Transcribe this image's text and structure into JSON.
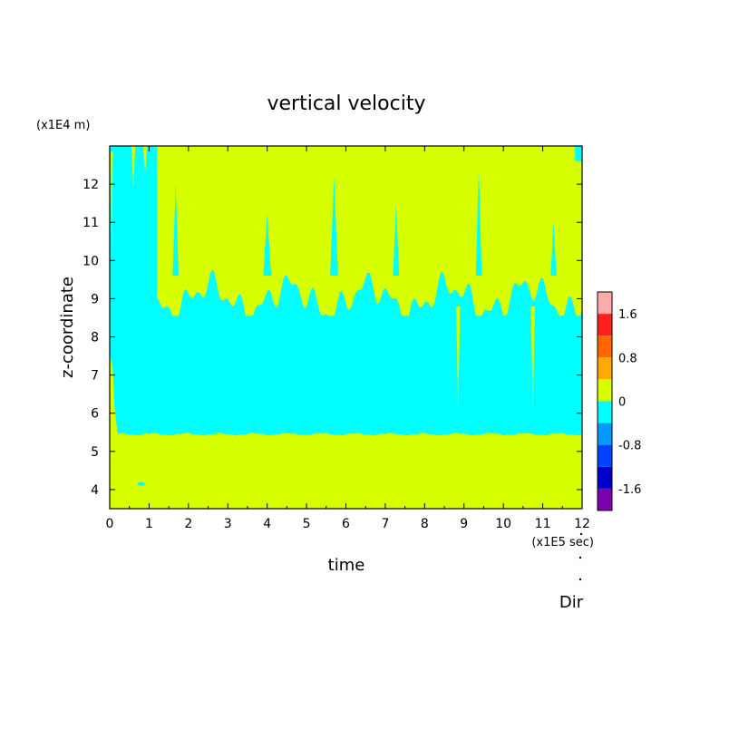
{
  "chart_data": {
    "type": "heatmap",
    "title": "vertical velocity",
    "xlabel": "time",
    "ylabel": "z-coordinate",
    "x_unit": "(x1E5 sec)",
    "y_unit": "(x1E4 m)",
    "x_range": [
      0,
      12
    ],
    "y_range": [
      3.5,
      13
    ],
    "x_ticks": [
      0,
      1,
      2,
      3,
      4,
      5,
      6,
      7,
      8,
      9,
      10,
      11,
      12
    ],
    "y_ticks": [
      4,
      5,
      6,
      7,
      8,
      9,
      10,
      11,
      12
    ],
    "colorbar": {
      "tick_labels": [
        "1.6",
        "0.8",
        "0",
        "-0.8",
        "-1.6"
      ],
      "levels": [
        {
          "lower": 1.6,
          "upper": 2.0,
          "color": "#ffaaaa"
        },
        {
          "lower": 1.2,
          "upper": 1.6,
          "color": "#ff2020"
        },
        {
          "lower": 0.8,
          "upper": 1.2,
          "color": "#ff6600"
        },
        {
          "lower": 0.4,
          "upper": 0.8,
          "color": "#ffaa00"
        },
        {
          "lower": 0.0,
          "upper": 0.4,
          "color": "#d7ff00"
        },
        {
          "lower": -0.4,
          "upper": 0.0,
          "color": "#00ffff"
        },
        {
          "lower": -0.8,
          "upper": -0.4,
          "color": "#0099ff"
        },
        {
          "lower": -1.2,
          "upper": -0.8,
          "color": "#0044ff"
        },
        {
          "lower": -1.6,
          "upper": -1.2,
          "color": "#0000cc"
        },
        {
          "lower": -2.0,
          "upper": -1.6,
          "color": "#7a00b0"
        }
      ]
    },
    "regions": [
      {
        "value_range": [
          0.0,
          0.4
        ],
        "color": "#d7ff00",
        "z_range": [
          3.5,
          5.45
        ],
        "x_range": [
          0,
          12
        ]
      },
      {
        "value_range": [
          -0.4,
          0.0
        ],
        "color": "#00ffff",
        "z_range": [
          5.45,
          9.0
        ],
        "x_range": [
          0,
          12
        ]
      },
      {
        "value_range": [
          0.0,
          0.4
        ],
        "color": "#d7ff00",
        "z_range": [
          9.0,
          13.0
        ],
        "x_range": [
          1.2,
          12
        ],
        "pattern": "streaky"
      }
    ],
    "grid": false
  },
  "footer_text": "Dir"
}
